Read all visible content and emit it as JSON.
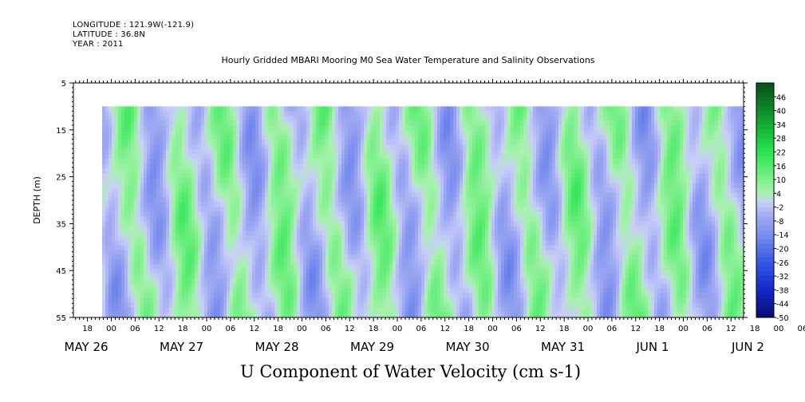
{
  "header": {
    "longitude": "LONGITUDE : 121.9W(-121.9)",
    "latitude": "LATITUDE : 36.8N",
    "year": "YEAR : 2011"
  },
  "chart_data": {
    "type": "heatmap",
    "title": "Hourly Gridded MBARI Mooring M0 Sea Water Temperature and Salinity Observations",
    "bottom_title": "U Component of Water Velocity (cm s-1)",
    "ylabel": "DEPTH (m)",
    "y_ticks": [
      "5",
      "15",
      "25",
      "35",
      "45",
      "55"
    ],
    "ylim": [
      55,
      5
    ],
    "data_depth_range": [
      10,
      55
    ],
    "x_hour_ticks": [
      "18",
      "00",
      "06",
      "12",
      "18",
      "00",
      "06",
      "12",
      "18",
      "00",
      "06",
      "12",
      "18",
      "00",
      "06",
      "12",
      "18",
      "00",
      "06",
      "12",
      "18",
      "00",
      "06",
      "12",
      "18",
      "00",
      "06",
      "12",
      "18",
      "00",
      "06",
      "12"
    ],
    "x_date_labels": [
      "MAY 26",
      "MAY 27",
      "MAY 28",
      "MAY 29",
      "MAY 30",
      "MAY 31",
      "JUN  1",
      "JUN  2"
    ],
    "colorbar_levels": [
      "46",
      "40",
      "34",
      "28",
      "22",
      "16",
      "10",
      "4",
      "-2",
      "-8",
      "-14",
      "-20",
      "-26",
      "-32",
      "-38",
      "-44",
      "-50"
    ],
    "colorbar_range": [
      -50,
      52
    ],
    "colors": {
      "grid_fill": "#ffffff",
      "negative_light": "#aab2f2",
      "negative_mid": "#8fa0ee",
      "negative_dark": "#3a5fe0",
      "positive_light": "#9ef0a6",
      "positive_mid": "#3fe85e",
      "positive_dark": "#0d7a2a"
    }
  }
}
